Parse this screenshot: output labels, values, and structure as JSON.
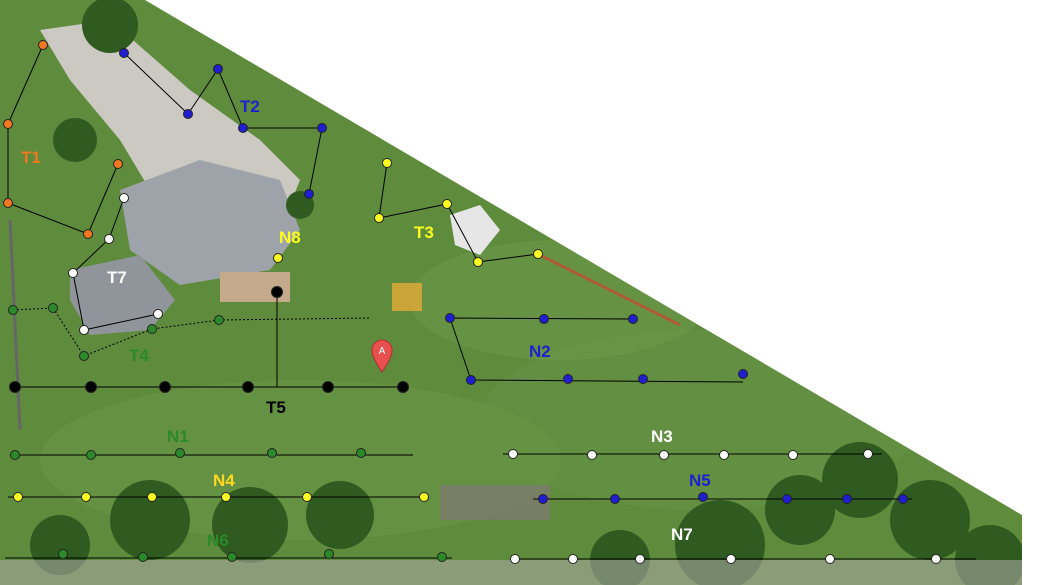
{
  "map": {
    "marker_letter": "A",
    "colors": {
      "grass": "#5e8b3c",
      "grass_dark": "#3f6a2a",
      "roof": "#9aa0a5",
      "driveway": "#c9c7c0",
      "orange": "#f07820",
      "blue": "#1f1fd0",
      "yellow": "#ffff20",
      "green": "#2a8a2a",
      "white": "#ffffff",
      "black": "#000000",
      "marker": "#e85050"
    },
    "transects": [
      {
        "id": "T1",
        "label": "T1",
        "color": "orange"
      },
      {
        "id": "T2",
        "label": "T2",
        "color": "blue"
      },
      {
        "id": "T3",
        "label": "T3",
        "color": "yellow"
      },
      {
        "id": "T4",
        "label": "T4",
        "color": "green"
      },
      {
        "id": "T5",
        "label": "T5",
        "color": "black"
      },
      {
        "id": "T7",
        "label": "T7",
        "color": "white"
      },
      {
        "id": "N8",
        "label": "N8",
        "color": "yellow"
      },
      {
        "id": "N1",
        "label": "N1",
        "color": "green"
      },
      {
        "id": "N2",
        "label": "N2",
        "color": "blue"
      },
      {
        "id": "N3",
        "label": "N3",
        "color": "white"
      },
      {
        "id": "N4",
        "label": "N4",
        "color": "yellow"
      },
      {
        "id": "N5",
        "label": "N5",
        "color": "blue"
      },
      {
        "id": "N6",
        "label": "N6",
        "color": "green"
      },
      {
        "id": "N7",
        "label": "N7",
        "color": "white"
      }
    ]
  }
}
